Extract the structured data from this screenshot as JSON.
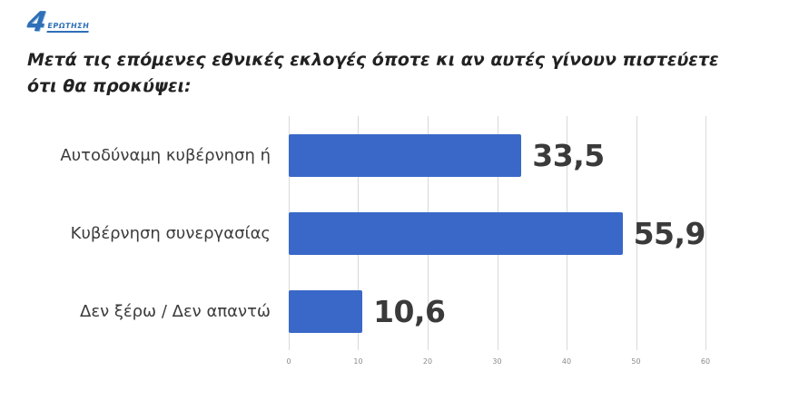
{
  "logo": {
    "number": "4",
    "label": "ΕΡΩΤΗΣΗ"
  },
  "title": "Μετά τις επόμενες εθνικές εκλογές όποτε κι αν αυτές γίνουν πιστεύετε ότι θα προκύψει:",
  "chart_data": {
    "type": "bar",
    "orientation": "horizontal",
    "title": "Μετά τις επόμενες εθνικές εκλογές όποτε κι αν αυτές γίνουν πιστεύετε ότι θα προκύψει:",
    "categories": [
      "Αυτοδύναμη κυβέρνηση ή",
      "Κυβέρνηση συνεργασίας",
      "Δεν ξέρω / Δεν απαντώ"
    ],
    "values": [
      33.5,
      55.9,
      10.6
    ],
    "value_labels": [
      "33,5",
      "55,9",
      "10,6"
    ],
    "xlim": [
      0,
      60
    ],
    "x_ticks": [
      0,
      10,
      20,
      30,
      40,
      50,
      60
    ],
    "bar_color": "#3a68c8",
    "grid": true,
    "legend": false,
    "background": "#ffffff"
  }
}
